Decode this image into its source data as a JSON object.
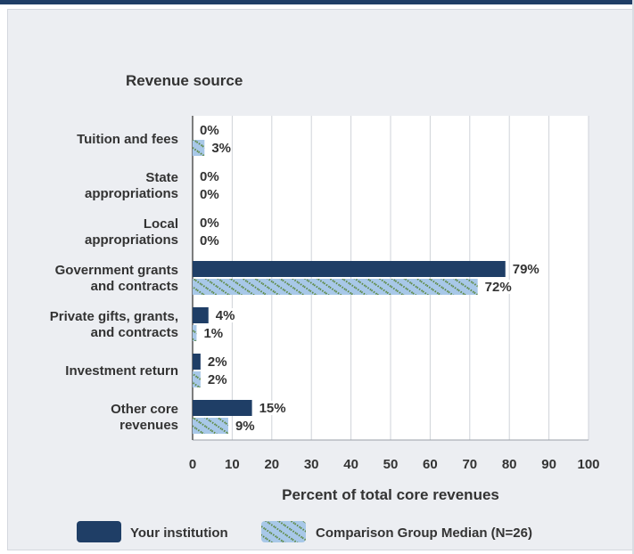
{
  "chart_data": {
    "type": "bar",
    "orientation": "horizontal",
    "heading": "Revenue source",
    "xlabel": "Percent of total core revenues",
    "xlim": [
      0,
      100
    ],
    "xticks": [
      "0",
      "10",
      "20",
      "30",
      "40",
      "50",
      "60",
      "70",
      "80",
      "90",
      "100"
    ],
    "grid": true,
    "legend_position": "bottom",
    "categories": [
      [
        "Tuition and fees"
      ],
      [
        "State",
        "appropriations"
      ],
      [
        "Local",
        "appropriations"
      ],
      [
        "Government grants",
        "and contracts"
      ],
      [
        "Private gifts, grants,",
        "and contracts"
      ],
      [
        "Investment return"
      ],
      [
        "Other core",
        "revenues"
      ]
    ],
    "series": [
      {
        "name": "Your institution",
        "values": [
          0,
          0,
          0,
          79,
          4,
          2,
          15
        ],
        "labels": [
          "0%",
          "0%",
          "0%",
          "79%",
          "4%",
          "2%",
          "15%"
        ],
        "color": "#1f3e66"
      },
      {
        "name": "Comparison Group Median (N=26)",
        "values": [
          3,
          0,
          0,
          72,
          1,
          2,
          9
        ],
        "labels": [
          "3%",
          "0%",
          "0%",
          "72%",
          "1%",
          "2%",
          "9%"
        ],
        "color": "#a8c8e8",
        "pattern": "green-dotted-diagonal"
      }
    ]
  }
}
